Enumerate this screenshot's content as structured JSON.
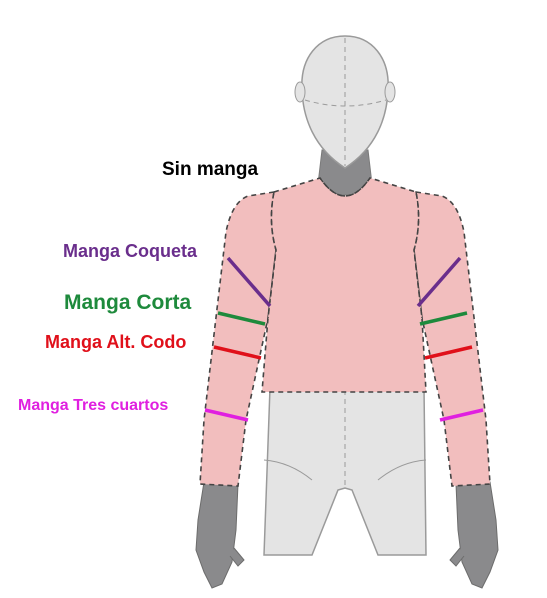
{
  "labels": {
    "sleeveless": {
      "text": "Sin manga",
      "color": "#000000"
    },
    "cap_sleeve": {
      "text": "Manga Coqueta",
      "color": "#6a2e8c"
    },
    "short_sleeve": {
      "text": "Manga Corta",
      "color": "#1e8a3c"
    },
    "elbow_sleeve": {
      "text": "Manga Alt. Codo",
      "color": "#e0101a"
    },
    "three_quarter_sleeve": {
      "text": "Manga Tres cuartos",
      "color": "#e020e0"
    }
  },
  "colors": {
    "garment_fill": "#f2bebe",
    "mannequin_fill": "#e4e4e4",
    "mannequin_stroke": "#9a9a9a",
    "hand_fill": "#8a8a8c",
    "dash_stroke": "#444444"
  }
}
